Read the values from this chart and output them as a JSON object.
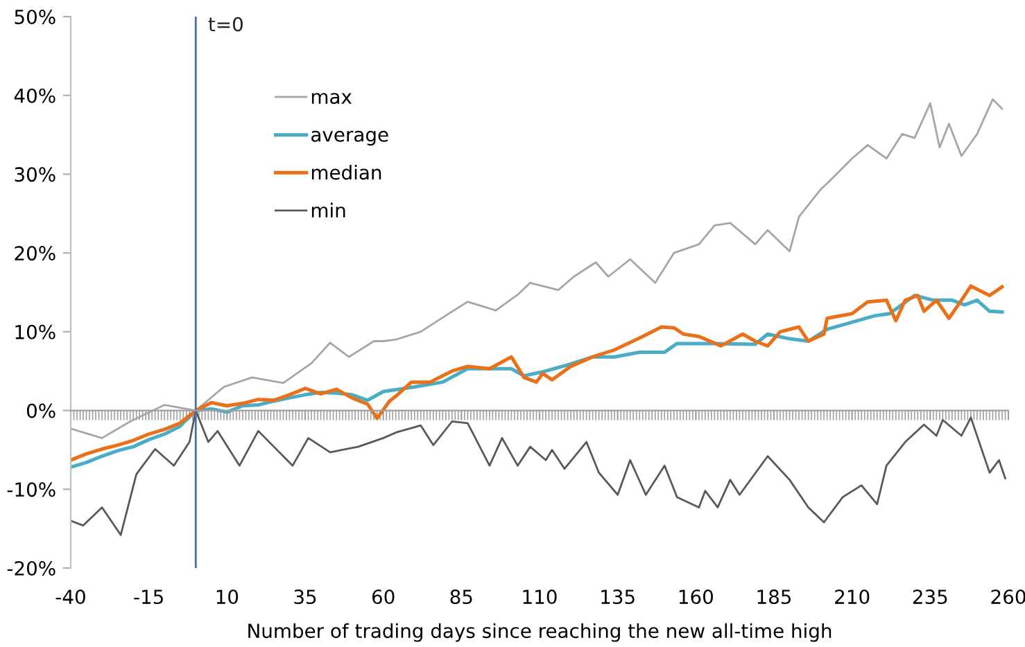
{
  "chart_data": {
    "type": "line",
    "xlabel": "Number of trading days since reaching the new all-time high",
    "xlim": [
      -40,
      260
    ],
    "xticks": [
      -40,
      -15,
      10,
      35,
      60,
      85,
      110,
      135,
      160,
      185,
      210,
      235,
      260
    ],
    "ylim": [
      -20,
      50
    ],
    "yticks": [
      {
        "value": -20,
        "label": "-20%"
      },
      {
        "value": -10,
        "label": "-10%"
      },
      {
        "value": 0,
        "label": "0%"
      },
      {
        "value": 10,
        "label": "10%"
      },
      {
        "value": 20,
        "label": "20%"
      },
      {
        "value": 30,
        "label": "30%"
      },
      {
        "value": 40,
        "label": "40%"
      },
      {
        "value": 50,
        "label": "50%"
      }
    ],
    "legend": "top left",
    "ref_lines": [
      {
        "axis": "x",
        "value": 0,
        "label": "t=0",
        "color": "#4a6fa5"
      }
    ],
    "series": [
      {
        "name": "max",
        "color": "#a6a6a6",
        "x": [
          -40,
          -30,
          -21,
          -10,
          0,
          9,
          18,
          28,
          37,
          43,
          49,
          57,
          60,
          64,
          72,
          81,
          87,
          96,
          103,
          107,
          116,
          121,
          128,
          132,
          139,
          147,
          153,
          161,
          166,
          171,
          179,
          183,
          190,
          193,
          200,
          202,
          210,
          215,
          221,
          226,
          230,
          235,
          238,
          241,
          245,
          250,
          255,
          258
        ],
        "values": [
          -2.3,
          -3.5,
          -1.4,
          0.7,
          0,
          3,
          4.2,
          3.5,
          6,
          8.6,
          6.8,
          8.8,
          8.8,
          9,
          10,
          12.3,
          13.8,
          12.7,
          14.7,
          16.2,
          15.3,
          17,
          18.8,
          17,
          19.2,
          16.2,
          20,
          21.1,
          23.5,
          23.8,
          21.1,
          22.9,
          20.2,
          24.6,
          28.1,
          28.8,
          32,
          33.7,
          32,
          35.1,
          34.6,
          39,
          33.4,
          36.4,
          32.3,
          35.1,
          39.5,
          38.3
        ]
      },
      {
        "name": "average",
        "color": "#4bacc6",
        "x": [
          -40,
          -35,
          -30,
          -25,
          -20,
          -15,
          -10,
          -5,
          0,
          5,
          10,
          15,
          20,
          25,
          30,
          35,
          40,
          45,
          50,
          55,
          60,
          70,
          79,
          87,
          101,
          105,
          112,
          120,
          127,
          134,
          142,
          150,
          154,
          163,
          166,
          179,
          183,
          190,
          196,
          202,
          210,
          217,
          222,
          230,
          236,
          242,
          246,
          250,
          254,
          258
        ],
        "values": [
          -7.2,
          -6.6,
          -5.8,
          -5.1,
          -4.6,
          -3.7,
          -3,
          -2,
          0,
          0.2,
          -0.2,
          0.6,
          0.7,
          1.2,
          1.6,
          2,
          2.3,
          2.2,
          2,
          1.3,
          2.4,
          3,
          3.6,
          5.3,
          5.3,
          4.4,
          5,
          5.9,
          6.8,
          6.8,
          7.4,
          7.4,
          8.5,
          8.5,
          8.5,
          8.4,
          9.7,
          9.1,
          8.8,
          10.3,
          11.2,
          12,
          12.3,
          14.6,
          14,
          14,
          13.4,
          14,
          12.6,
          12.5
        ]
      },
      {
        "name": "median",
        "color": "#e8711a",
        "x": [
          -40,
          -35,
          -30,
          -25,
          -20,
          -15,
          -10,
          -5,
          0,
          5,
          10,
          15,
          20,
          25,
          30,
          35,
          40,
          45,
          50,
          55,
          58,
          62,
          64,
          69,
          75,
          79,
          82,
          87,
          94,
          101,
          105,
          109,
          111,
          114,
          120,
          127,
          134,
          143,
          149,
          153,
          156,
          161,
          168,
          175,
          179,
          183,
          187,
          193,
          196,
          201,
          202,
          210,
          215,
          221,
          224,
          227,
          231,
          233,
          237,
          241,
          245,
          248,
          254,
          258
        ],
        "values": [
          -6.3,
          -5.5,
          -4.9,
          -4.4,
          -3.8,
          -3,
          -2.4,
          -1.6,
          0,
          1,
          0.6,
          0.9,
          1.4,
          1.3,
          2,
          2.8,
          2.1,
          2.7,
          1.6,
          0.8,
          -1,
          1.2,
          1.8,
          3.6,
          3.6,
          4.4,
          5,
          5.6,
          5.3,
          6.8,
          4.2,
          3.6,
          4.7,
          3.9,
          5.6,
          6.8,
          7.7,
          9.4,
          10.6,
          10.5,
          9.7,
          9.4,
          8.2,
          9.7,
          8.8,
          8.2,
          10,
          10.6,
          8.8,
          9.7,
          11.7,
          12.3,
          13.8,
          14,
          11.4,
          14,
          14.6,
          12.6,
          14,
          11.7,
          14,
          15.8,
          14.6,
          15.7
        ]
      },
      {
        "name": "min",
        "color": "#595959",
        "x": [
          -40,
          -36,
          -30,
          -24,
          -19,
          -13,
          -7,
          -2,
          0,
          4,
          7,
          14,
          20,
          31,
          36,
          43,
          52,
          60,
          64,
          72,
          76,
          82,
          87,
          94,
          98,
          103,
          107,
          112,
          114,
          118,
          125,
          129,
          135,
          139,
          144,
          150,
          154,
          161,
          163,
          167,
          171,
          174,
          183,
          190,
          196,
          201,
          207,
          213,
          218,
          221,
          227,
          233,
          237,
          239,
          245,
          248,
          254,
          257,
          259
        ],
        "values": [
          -14,
          -14.6,
          -12.3,
          -15.8,
          -8.1,
          -4.9,
          -7,
          -4,
          0,
          -4,
          -2.6,
          -7,
          -2.6,
          -7,
          -3.5,
          -5.3,
          -4.6,
          -3.5,
          -2.8,
          -1.9,
          -4.4,
          -1.4,
          -1.6,
          -7,
          -3.5,
          -7,
          -4.6,
          -6.3,
          -5,
          -7.4,
          -4,
          -7.9,
          -10.7,
          -6.3,
          -10.7,
          -7,
          -11,
          -12.3,
          -10.2,
          -12.3,
          -8.8,
          -10.7,
          -5.8,
          -8.8,
          -12.3,
          -14.2,
          -11,
          -9.5,
          -11.9,
          -7,
          -4,
          -1.8,
          -3.2,
          -1.2,
          -3.2,
          -0.9,
          -7.9,
          -6.3,
          -8.6
        ]
      }
    ]
  }
}
